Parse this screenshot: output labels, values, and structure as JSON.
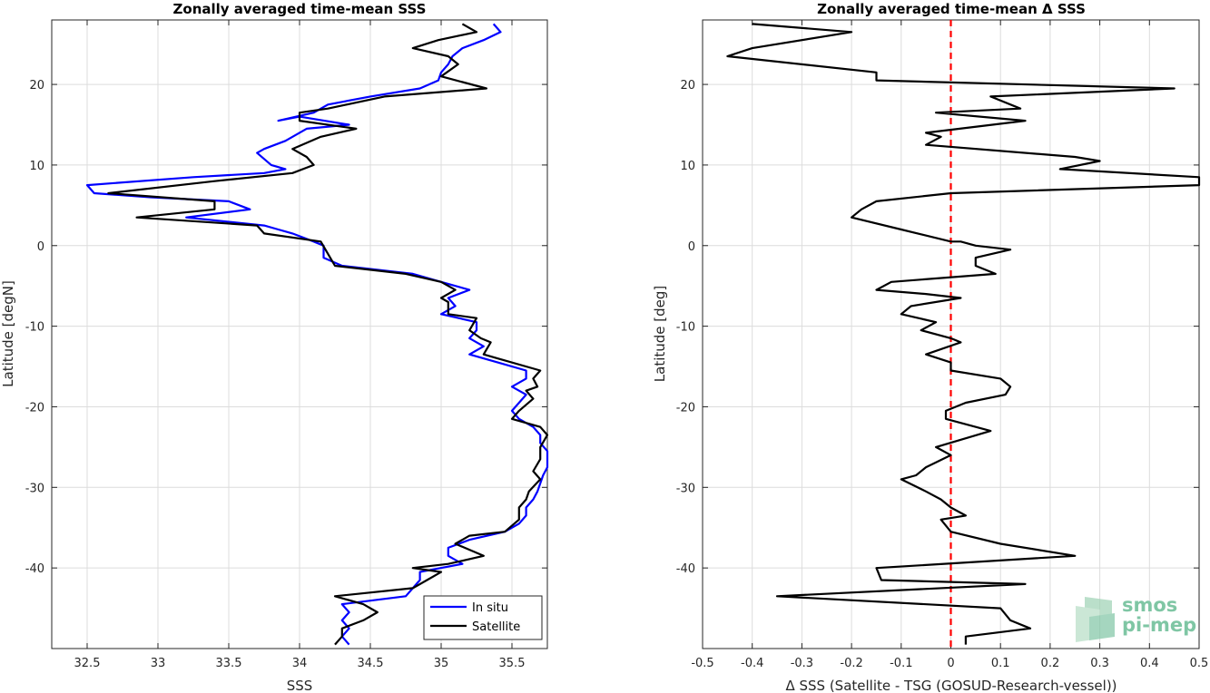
{
  "chart_data": [
    {
      "type": "line",
      "title": "Zonally averaged time-mean SSS",
      "xlabel": "SSS",
      "ylabel": "Latitude [degN]",
      "xlim": [
        32.25,
        35.75
      ],
      "ylim": [
        -50,
        28
      ],
      "xticks": [
        "32.5",
        "33",
        "33.5",
        "34",
        "34.5",
        "35",
        "35.5"
      ],
      "xtick_values": [
        32.5,
        33,
        33.5,
        34,
        34.5,
        35,
        35.5
      ],
      "yticks": [
        "20",
        "10",
        "0",
        "-10",
        "-20",
        "-30",
        "-40"
      ],
      "ytick_values": [
        20,
        10,
        0,
        -10,
        -20,
        -30,
        -40
      ],
      "grid": true,
      "legend_position": "bottom-right",
      "series": [
        {
          "name": "In situ",
          "color": "#0000ff",
          "points": [
            [
              35.37,
              27.5
            ],
            [
              35.42,
              26.5
            ],
            [
              35.3,
              25.5
            ],
            [
              35.15,
              24.5
            ],
            [
              35.08,
              23.5
            ],
            [
              35.05,
              22.5
            ],
            [
              35.0,
              21.5
            ],
            [
              34.98,
              20.5
            ],
            [
              34.85,
              19.5
            ],
            [
              34.5,
              18.5
            ],
            [
              34.2,
              17.5
            ],
            [
              34.1,
              16.5
            ],
            [
              33.85,
              15.5
            ],
            [
              34.0,
              16.0
            ],
            [
              34.35,
              15.0
            ],
            [
              34.05,
              14.5
            ],
            [
              33.9,
              13.0
            ],
            [
              33.75,
              12.0
            ],
            [
              33.7,
              11.5
            ],
            [
              33.8,
              10.0
            ],
            [
              33.9,
              9.5
            ],
            [
              33.75,
              9.0
            ],
            [
              33.25,
              8.5
            ],
            [
              32.5,
              7.5
            ],
            [
              32.55,
              6.5
            ],
            [
              32.95,
              6.0
            ],
            [
              33.5,
              5.5
            ],
            [
              33.65,
              4.5
            ],
            [
              33.2,
              3.5
            ],
            [
              33.75,
              2.5
            ],
            [
              33.85,
              2.0
            ],
            [
              33.95,
              1.5
            ],
            [
              34.1,
              0.5
            ],
            [
              34.17,
              0.0
            ],
            [
              34.17,
              -1.5
            ],
            [
              34.3,
              -2.5
            ],
            [
              34.8,
              -3.5
            ],
            [
              35.0,
              -4.5
            ],
            [
              35.2,
              -5.5
            ],
            [
              35.05,
              -6.5
            ],
            [
              35.1,
              -7.5
            ],
            [
              35.0,
              -8.5
            ],
            [
              35.25,
              -9.5
            ],
            [
              35.25,
              -10.5
            ],
            [
              35.2,
              -11.5
            ],
            [
              35.3,
              -12.5
            ],
            [
              35.2,
              -13.5
            ],
            [
              35.4,
              -14.5
            ],
            [
              35.6,
              -15.5
            ],
            [
              35.6,
              -16.5
            ],
            [
              35.5,
              -17.5
            ],
            [
              35.6,
              -18.5
            ],
            [
              35.55,
              -19.5
            ],
            [
              35.5,
              -20.5
            ],
            [
              35.55,
              -21.5
            ],
            [
              35.65,
              -22.5
            ],
            [
              35.7,
              -23.5
            ],
            [
              35.7,
              -24.5
            ],
            [
              35.75,
              -25.5
            ],
            [
              35.75,
              -26.5
            ],
            [
              35.75,
              -27.5
            ],
            [
              35.72,
              -28.5
            ],
            [
              35.7,
              -29.5
            ],
            [
              35.68,
              -30.5
            ],
            [
              35.65,
              -31.5
            ],
            [
              35.6,
              -32.5
            ],
            [
              35.6,
              -33.5
            ],
            [
              35.55,
              -34.5
            ],
            [
              35.45,
              -35.5
            ],
            [
              35.2,
              -36.5
            ],
            [
              35.05,
              -37.5
            ],
            [
              35.05,
              -38.5
            ],
            [
              35.15,
              -39.5
            ],
            [
              34.85,
              -40.5
            ],
            [
              34.85,
              -41.5
            ],
            [
              34.8,
              -42.5
            ],
            [
              34.75,
              -43.5
            ],
            [
              34.3,
              -44.5
            ],
            [
              34.35,
              -45.5
            ],
            [
              34.3,
              -46.5
            ],
            [
              34.35,
              -47.5
            ],
            [
              34.3,
              -48.5
            ],
            [
              34.35,
              -49.5
            ]
          ]
        },
        {
          "name": "Satellite",
          "color": "#000000",
          "points": [
            [
              35.15,
              27.5
            ],
            [
              35.25,
              26.5
            ],
            [
              34.98,
              25.5
            ],
            [
              34.8,
              24.5
            ],
            [
              35.05,
              23.5
            ],
            [
              35.12,
              22.5
            ],
            [
              35.0,
              21.0
            ],
            [
              35.32,
              19.5
            ],
            [
              34.6,
              18.5
            ],
            [
              34.2,
              17.0
            ],
            [
              34.0,
              16.5
            ],
            [
              34.0,
              15.5
            ],
            [
              34.4,
              14.5
            ],
            [
              34.15,
              13.5
            ],
            [
              33.95,
              12.0
            ],
            [
              34.05,
              11.0
            ],
            [
              34.1,
              10.0
            ],
            [
              33.95,
              9.0
            ],
            [
              33.4,
              8.0
            ],
            [
              32.65,
              6.5
            ],
            [
              33.4,
              5.5
            ],
            [
              33.4,
              4.5
            ],
            [
              32.85,
              3.5
            ],
            [
              33.7,
              2.5
            ],
            [
              33.75,
              1.5
            ],
            [
              34.15,
              0.5
            ],
            [
              34.2,
              -1.0
            ],
            [
              34.25,
              -2.5
            ],
            [
              34.75,
              -3.5
            ],
            [
              35.0,
              -4.5
            ],
            [
              35.1,
              -5.5
            ],
            [
              35.0,
              -6.5
            ],
            [
              35.05,
              -7.0
            ],
            [
              35.05,
              -8.5
            ],
            [
              35.25,
              -9.0
            ],
            [
              35.2,
              -10.5
            ],
            [
              35.28,
              -11.5
            ],
            [
              35.35,
              -12.0
            ],
            [
              35.3,
              -13.5
            ],
            [
              35.4,
              -14.0
            ],
            [
              35.7,
              -15.5
            ],
            [
              35.65,
              -16.5
            ],
            [
              35.68,
              -17.5
            ],
            [
              35.6,
              -18.0
            ],
            [
              35.65,
              -19.0
            ],
            [
              35.55,
              -20.5
            ],
            [
              35.5,
              -21.5
            ],
            [
              35.7,
              -22.5
            ],
            [
              35.75,
              -23.5
            ],
            [
              35.7,
              -25.0
            ],
            [
              35.7,
              -26.5
            ],
            [
              35.65,
              -28.0
            ],
            [
              35.7,
              -29.0
            ],
            [
              35.62,
              -30.5
            ],
            [
              35.6,
              -31.5
            ],
            [
              35.55,
              -32.5
            ],
            [
              35.55,
              -34.0
            ],
            [
              35.45,
              -35.5
            ],
            [
              35.2,
              -36.0
            ],
            [
              35.1,
              -37.0
            ],
            [
              35.3,
              -38.5
            ],
            [
              35.05,
              -39.5
            ],
            [
              34.8,
              -40.0
            ],
            [
              35.0,
              -40.5
            ],
            [
              34.9,
              -41.5
            ],
            [
              34.8,
              -42.5
            ],
            [
              34.25,
              -43.5
            ],
            [
              34.45,
              -44.5
            ],
            [
              34.55,
              -45.5
            ],
            [
              34.45,
              -46.5
            ],
            [
              34.3,
              -47.5
            ],
            [
              34.3,
              -48.5
            ],
            [
              34.25,
              -49.5
            ]
          ]
        }
      ]
    },
    {
      "type": "line",
      "title": "Zonally averaged time-mean Δ SSS",
      "xlabel": "Δ SSS (Satellite - TSG (GOSUD-Research-vessel))",
      "ylabel": "Latitude [deg]",
      "xlim": [
        -0.5,
        0.5
      ],
      "ylim": [
        -50,
        28
      ],
      "xticks": [
        "-0.5",
        "-0.4",
        "-0.3",
        "-0.2",
        "-0.1",
        "0",
        "0.1",
        "0.2",
        "0.3",
        "0.4",
        "0.5"
      ],
      "xtick_values": [
        -0.5,
        -0.4,
        -0.3,
        -0.2,
        -0.1,
        0,
        0.1,
        0.2,
        0.3,
        0.4,
        0.5
      ],
      "yticks": [
        "20",
        "10",
        "0",
        "-10",
        "-20",
        "-30",
        "-40"
      ],
      "ytick_values": [
        20,
        10,
        0,
        -10,
        -20,
        -30,
        -40
      ],
      "grid": true,
      "reference_line": {
        "x": 0,
        "color": "#ff0000",
        "style": "dashed"
      },
      "series": [
        {
          "color": "#000000",
          "points": [
            [
              -0.4,
              27.5
            ],
            [
              -0.2,
              26.5
            ],
            [
              -0.4,
              24.5
            ],
            [
              -0.45,
              23.5
            ],
            [
              -0.15,
              21.5
            ],
            [
              -0.15,
              20.5
            ],
            [
              0.45,
              19.5
            ],
            [
              0.08,
              18.5
            ],
            [
              0.14,
              17.0
            ],
            [
              -0.03,
              16.5
            ],
            [
              0.15,
              15.5
            ],
            [
              -0.05,
              14.0
            ],
            [
              -0.02,
              13.5
            ],
            [
              -0.05,
              12.5
            ],
            [
              0.25,
              11.0
            ],
            [
              0.3,
              10.5
            ],
            [
              0.22,
              9.5
            ],
            [
              0.5,
              8.5
            ],
            [
              0.5,
              7.5
            ],
            [
              0.0,
              6.5
            ],
            [
              -0.15,
              5.5
            ],
            [
              -0.18,
              4.5
            ],
            [
              -0.2,
              3.5
            ],
            [
              -0.1,
              2.0
            ],
            [
              0.0,
              0.5
            ],
            [
              0.02,
              0.5
            ],
            [
              0.05,
              0.0
            ],
            [
              0.12,
              -0.5
            ],
            [
              0.05,
              -1.5
            ],
            [
              0.05,
              -2.5
            ],
            [
              0.09,
              -3.5
            ],
            [
              -0.12,
              -4.5
            ],
            [
              -0.15,
              -5.5
            ],
            [
              -0.05,
              -6.0
            ],
            [
              0.02,
              -6.5
            ],
            [
              -0.08,
              -7.5
            ],
            [
              -0.1,
              -8.5
            ],
            [
              -0.03,
              -9.5
            ],
            [
              -0.06,
              -10.5
            ],
            [
              0.0,
              -11.5
            ],
            [
              0.02,
              -12.0
            ],
            [
              -0.05,
              -13.5
            ],
            [
              0.0,
              -14.5
            ],
            [
              0.0,
              -15.5
            ],
            [
              0.1,
              -16.5
            ],
            [
              0.12,
              -17.5
            ],
            [
              0.11,
              -18.5
            ],
            [
              0.03,
              -19.5
            ],
            [
              -0.01,
              -20.5
            ],
            [
              -0.01,
              -21.5
            ],
            [
              0.08,
              -23.0
            ],
            [
              -0.03,
              -25.0
            ],
            [
              0.0,
              -26.0
            ],
            [
              -0.05,
              -27.5
            ],
            [
              -0.07,
              -28.5
            ],
            [
              -0.1,
              -29.0
            ],
            [
              -0.05,
              -30.5
            ],
            [
              -0.02,
              -31.5
            ],
            [
              0.0,
              -32.5
            ],
            [
              0.03,
              -33.5
            ],
            [
              -0.02,
              -34.0
            ],
            [
              0.0,
              -35.5
            ],
            [
              0.1,
              -37.0
            ],
            [
              0.25,
              -38.5
            ],
            [
              -0.15,
              -40.0
            ],
            [
              -0.14,
              -41.5
            ],
            [
              0.15,
              -42.0
            ],
            [
              -0.35,
              -43.5
            ],
            [
              0.1,
              -45.0
            ],
            [
              0.12,
              -46.5
            ],
            [
              0.16,
              -47.5
            ],
            [
              0.03,
              -48.5
            ],
            [
              0.03,
              -49.5
            ]
          ]
        }
      ]
    }
  ],
  "logo": {
    "line1": "smos",
    "line2": "pi-mep"
  }
}
